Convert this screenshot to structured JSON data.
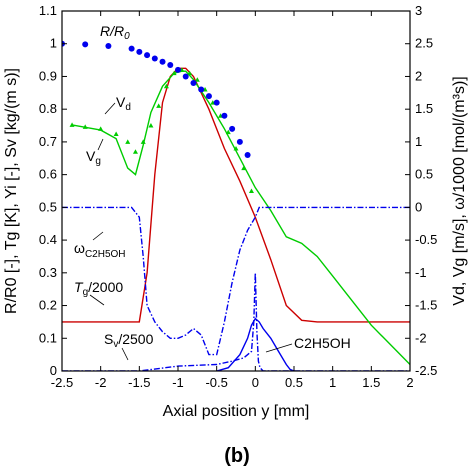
{
  "chart_data": {
    "type": "line",
    "panel_label": "(b)",
    "xlabel": "Axial position y [mm]",
    "ylabel_left": "R/R0 [-], Tg [K], Yi [-], Sv [kg/(m s)]",
    "ylabel_right": "Vd, Vg [m/s], ω/1000 [mol/(m³s)]",
    "xlim": [
      -2.5,
      2
    ],
    "ylim_left": [
      0,
      1.1
    ],
    "ylim_right": [
      -2.5,
      3
    ],
    "x_ticks": [
      "-2.5",
      "-2",
      "-1.5",
      "-1",
      "-0.5",
      "0",
      "0.5",
      "1",
      "1.5",
      "2"
    ],
    "y_left_ticks": [
      "0",
      "0.1",
      "0.2",
      "0.3",
      "0.4",
      "0.5",
      "0.6",
      "0.7",
      "0.8",
      "0.9",
      "1",
      "1.1"
    ],
    "y_right_ticks": [
      "-2.5",
      "-2",
      "-1.5",
      "-1",
      "-0.5",
      "0",
      "0.5",
      "1",
      "1.5",
      "2",
      "2.5",
      "3"
    ],
    "colors": {
      "red": "#cc0000",
      "green": "#00cc00",
      "blue": "#0000ee"
    },
    "annotations": {
      "r_over_r0": "R/R",
      "r0_sub": "0",
      "vd": "V",
      "vd_sub": "d",
      "vg": "V",
      "vg_sub": "g",
      "omega": "ω",
      "omega_sub": "C2H5OH",
      "tg": "T",
      "tg_sub": "g",
      "tg_rest": "/2000",
      "sv": "S",
      "sv_sub": "v",
      "sv_rest": "/2500",
      "c2h5oh": "C2H5OH"
    },
    "series": [
      {
        "axis": "left",
        "color": "red",
        "style": "solid",
        "x": [
          -2.5,
          -1.5,
          -1.4,
          -1.3,
          -1.2,
          -1.1,
          -1.0,
          -0.9,
          -0.8,
          -0.6,
          -0.4,
          -0.2,
          0.0,
          0.2,
          0.4,
          0.6,
          0.8,
          2.0
        ],
        "y": [
          0.15,
          0.15,
          0.3,
          0.6,
          0.82,
          0.9,
          0.925,
          0.925,
          0.9,
          0.8,
          0.68,
          0.58,
          0.47,
          0.34,
          0.2,
          0.155,
          0.15,
          0.15
        ]
      },
      {
        "axis": "right",
        "color": "green",
        "style": "solid",
        "x": [
          -2.37,
          -2.0,
          -1.8,
          -1.65,
          -1.55,
          -1.45,
          -1.35,
          -1.2,
          -1.05,
          -0.95,
          -0.9,
          -0.8,
          -0.6,
          -0.4,
          -0.2,
          0.0,
          0.2,
          0.4,
          0.6,
          0.8,
          1.0,
          1.2,
          1.5,
          2.0
        ],
        "y": [
          1.26,
          1.18,
          1.05,
          0.6,
          0.5,
          0.95,
          1.45,
          1.85,
          2.05,
          2.08,
          2.08,
          1.95,
          1.6,
          1.2,
          0.75,
          0.3,
          -0.05,
          -0.45,
          -0.55,
          -0.75,
          -1.05,
          -1.35,
          -1.8,
          -2.4
        ]
      },
      {
        "axis": "right",
        "color": "green",
        "style": "dotted",
        "x": [
          -2.37,
          -2.2,
          -2.0,
          -1.8,
          -1.65,
          -1.55,
          -1.45,
          -1.35,
          -1.25,
          -1.15,
          -1.05,
          -0.95,
          -0.85,
          -0.75,
          -0.65,
          -0.55,
          -0.45,
          -0.35,
          -0.25,
          -0.15,
          -0.05
        ],
        "y": [
          1.26,
          1.23,
          1.2,
          1.12,
          1.0,
          0.85,
          1.0,
          1.25,
          1.55,
          1.85,
          2.05,
          2.1,
          2.05,
          1.95,
          1.8,
          1.6,
          1.4,
          1.15,
          0.9,
          0.6,
          0.25
        ]
      },
      {
        "axis": "left",
        "color": "blue",
        "style": "dots",
        "x": [
          -2.5,
          -2.2,
          -1.9,
          -1.6,
          -1.5,
          -1.4,
          -1.3,
          -1.2,
          -1.1,
          -1.0,
          -0.9,
          -0.8,
          -0.7,
          -0.6,
          -0.5,
          -0.4,
          -0.3,
          -0.2,
          -0.1
        ],
        "y": [
          1.0,
          0.998,
          0.993,
          0.985,
          0.975,
          0.965,
          0.955,
          0.945,
          0.935,
          0.92,
          0.9,
          0.88,
          0.86,
          0.84,
          0.82,
          0.78,
          0.74,
          0.7,
          0.66
        ]
      },
      {
        "axis": "left",
        "color": "blue",
        "style": "dashdot",
        "x": [
          -2.5,
          -1.6,
          -1.5,
          -1.45,
          -1.4,
          -1.3,
          -1.2,
          -1.1,
          -1.0,
          -0.9,
          -0.8,
          -0.7,
          -0.6,
          -0.5,
          -0.4,
          -0.3,
          -0.2,
          -0.1,
          0.0,
          0.05,
          0.1,
          0.3,
          0.6,
          2.0
        ],
        "y": [
          0.5,
          0.5,
          0.47,
          0.35,
          0.2,
          0.15,
          0.12,
          0.1,
          0.1,
          0.11,
          0.13,
          0.11,
          0.05,
          0.05,
          0.15,
          0.27,
          0.37,
          0.43,
          0.47,
          0.5,
          0.5,
          0.5,
          0.5,
          0.5
        ]
      },
      {
        "axis": "left",
        "color": "blue",
        "style": "solid",
        "x": [
          -0.5,
          -0.35,
          -0.2,
          -0.1,
          -0.05,
          0.0,
          0.05,
          0.1,
          0.2,
          0.3,
          0.4,
          0.45,
          0.5
        ],
        "y": [
          0.0,
          0.01,
          0.05,
          0.1,
          0.14,
          0.16,
          0.15,
          0.13,
          0.1,
          0.06,
          0.02,
          0.005,
          0.0
        ]
      },
      {
        "axis": "left",
        "color": "blue",
        "style": "dashdot",
        "x": [
          -2.5,
          -1.5,
          -1.0,
          -0.5,
          -0.3,
          -0.15,
          -0.05,
          -0.02,
          0.0,
          0.02,
          0.04,
          0.06,
          0.1,
          0.3,
          2.0
        ],
        "y": [
          0.0,
          0.0,
          0.015,
          0.02,
          0.03,
          0.04,
          0.06,
          0.15,
          0.3,
          0.12,
          0.03,
          0.01,
          0.0,
          0.0,
          0.0
        ]
      }
    ]
  }
}
